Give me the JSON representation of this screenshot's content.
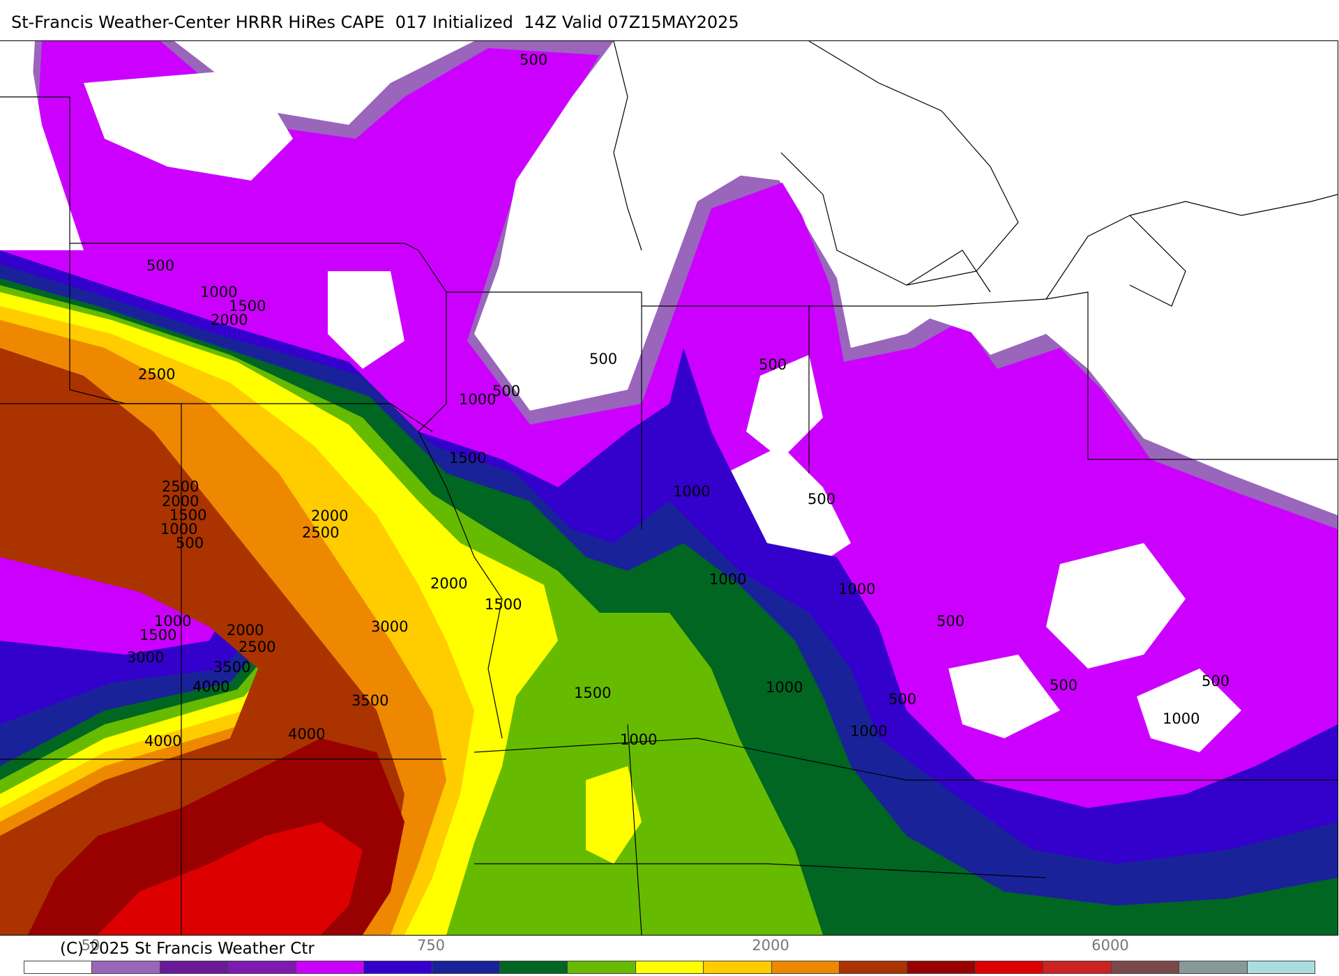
{
  "title": "St-Francis Weather-Center HRRR HiRes CAPE  017 Initialized  14Z Valid 07Z15MAY2025",
  "copyright": "(C) 2025 St Francis Weather Ctr",
  "map": {
    "field": "CAPE",
    "contour_labels": [
      {
        "text": "500"
      },
      {
        "text": "500"
      },
      {
        "text": "1000"
      },
      {
        "text": "1500"
      },
      {
        "text": "2000"
      },
      {
        "text": "2500"
      },
      {
        "text": "500"
      },
      {
        "text": "500"
      },
      {
        "text": "1000"
      },
      {
        "text": "500"
      },
      {
        "text": "1500"
      },
      {
        "text": "1000"
      },
      {
        "text": "500"
      },
      {
        "text": "2500"
      },
      {
        "text": "2000"
      },
      {
        "text": "1500"
      },
      {
        "text": "1000"
      },
      {
        "text": "500"
      },
      {
        "text": "2000"
      },
      {
        "text": "2500"
      },
      {
        "text": "2000"
      },
      {
        "text": "1500"
      },
      {
        "text": "1000"
      },
      {
        "text": "1000"
      },
      {
        "text": "1000"
      },
      {
        "text": "1500"
      },
      {
        "text": "2000"
      },
      {
        "text": "2500"
      },
      {
        "text": "3000"
      },
      {
        "text": "3000"
      },
      {
        "text": "3500"
      },
      {
        "text": "4000"
      },
      {
        "text": "3500"
      },
      {
        "text": "4000"
      },
      {
        "text": "4000"
      },
      {
        "text": "1500"
      },
      {
        "text": "1000"
      },
      {
        "text": "500"
      },
      {
        "text": "500"
      },
      {
        "text": "500"
      },
      {
        "text": "500"
      },
      {
        "text": "1000"
      },
      {
        "text": "1000"
      },
      {
        "text": "1000"
      }
    ]
  },
  "legend": {
    "visible_labels": [
      {
        "text": "50"
      },
      {
        "text": "750"
      },
      {
        "text": "2000"
      },
      {
        "text": "6000"
      }
    ],
    "colors": [
      "#ffffff",
      "#9966bb",
      "#6a1a99",
      "#7d1ab0",
      "#cc00ff",
      "#3300cc",
      "#1a2299",
      "#006622",
      "#66bb00",
      "#ffff00",
      "#ffcc00",
      "#ee8800",
      "#aa3300",
      "#990000",
      "#dd0000",
      "#cc2222",
      "#7a4a4a",
      "#889999",
      "#aadddd"
    ]
  }
}
